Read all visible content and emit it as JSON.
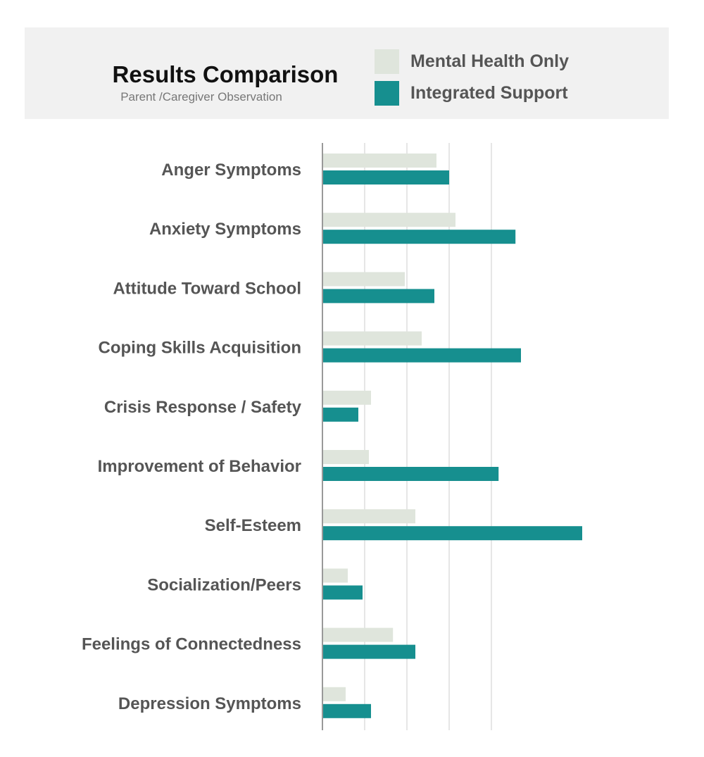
{
  "header": {
    "title": "Results Comparison",
    "subtitle": "Parent /Caregiver Observation"
  },
  "legend": [
    {
      "label": "Mental Health Only",
      "color": "#dfe5dc"
    },
    {
      "label": "Integrated Support",
      "color": "#168f8f"
    }
  ],
  "chart_data": {
    "type": "bar",
    "orientation": "horizontal",
    "title": "Results Comparison",
    "subtitle": "Parent /Caregiver Observation",
    "categories": [
      "Anger Symptoms",
      "Anxiety Symptoms",
      "Attitude Toward School",
      "Coping Skills Acquisition",
      "Crisis Response / Safety",
      "Improvement of Behavior",
      "Self-Esteem",
      "Socialization/Peers",
      "Feelings of Connectedness",
      "Depression Symptoms"
    ],
    "series": [
      {
        "name": "Mental Health Only",
        "color": "#dfe5dc",
        "values": [
          2.7,
          3.15,
          1.95,
          2.35,
          1.15,
          1.1,
          2.2,
          0.6,
          1.67,
          0.55
        ]
      },
      {
        "name": "Integrated Support",
        "color": "#168f8f",
        "values": [
          3.0,
          4.57,
          2.65,
          4.7,
          0.85,
          4.17,
          6.15,
          0.95,
          2.2,
          1.15
        ]
      }
    ],
    "xlim": [
      0,
      6.5
    ],
    "x_tick_labels_shown": false,
    "grid": "vertical lines",
    "legend_position": "top-right"
  }
}
